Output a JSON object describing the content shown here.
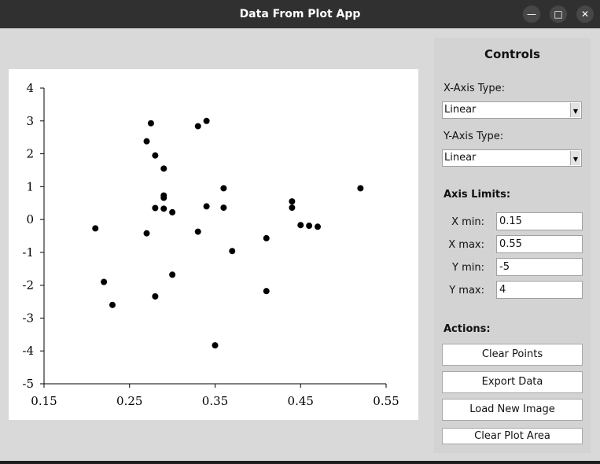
{
  "window": {
    "title": "Data From Plot App"
  },
  "controls": {
    "title": "Controls",
    "x_axis_type_label": "X-Axis Type:",
    "x_axis_type_value": "Linear",
    "y_axis_type_label": "Y-Axis Type:",
    "y_axis_type_value": "Linear",
    "axis_limits_label": "Axis Limits:",
    "xmin_label": "X min:",
    "xmin_value": "0.15",
    "xmax_label": "X max:",
    "xmax_value": "0.55",
    "ymin_label": "Y min:",
    "ymin_value": "-5",
    "ymax_label": "Y max:",
    "ymax_value": "4",
    "actions_label": "Actions:",
    "clear_points": "Clear Points",
    "export_data": "Export Data",
    "load_new_image": "Load New Image",
    "clear_plot_area": "Clear Plot Area"
  },
  "chart_data": {
    "type": "scatter",
    "title": "",
    "xlabel": "",
    "ylabel": "",
    "xlim": [
      0.15,
      0.55
    ],
    "ylim": [
      -5,
      4
    ],
    "xticks": [
      0.15,
      0.25,
      0.35,
      0.45,
      0.55
    ],
    "xtick_labels": [
      "0.15",
      "0.25",
      "0.35",
      "0.45",
      "0.55"
    ],
    "yticks": [
      4,
      3,
      2,
      1,
      0,
      -1,
      -2,
      -3,
      -4,
      -5
    ],
    "ytick_labels": [
      "4",
      "3",
      "2",
      "1",
      "0",
      "-1",
      "-2",
      "-3",
      "-4",
      "-5"
    ],
    "grid": false,
    "points": [
      [
        0.21,
        -0.27
      ],
      [
        0.22,
        -1.9
      ],
      [
        0.23,
        -2.6
      ],
      [
        0.27,
        2.38
      ],
      [
        0.275,
        2.93
      ],
      [
        0.27,
        -0.42
      ],
      [
        0.28,
        1.95
      ],
      [
        0.28,
        0.35
      ],
      [
        0.28,
        -2.34
      ],
      [
        0.29,
        1.55
      ],
      [
        0.29,
        0.73
      ],
      [
        0.29,
        0.66
      ],
      [
        0.29,
        0.33
      ],
      [
        0.3,
        0.22
      ],
      [
        0.3,
        -1.68
      ],
      [
        0.33,
        2.84
      ],
      [
        0.34,
        3.0
      ],
      [
        0.33,
        -0.37
      ],
      [
        0.34,
        0.4
      ],
      [
        0.35,
        -3.83
      ],
      [
        0.36,
        0.95
      ],
      [
        0.36,
        0.36
      ],
      [
        0.37,
        -0.96
      ],
      [
        0.41,
        -0.57
      ],
      [
        0.41,
        -2.18
      ],
      [
        0.44,
        0.55
      ],
      [
        0.44,
        0.36
      ],
      [
        0.45,
        -0.17
      ],
      [
        0.46,
        -0.19
      ],
      [
        0.47,
        -0.22
      ],
      [
        0.52,
        0.95
      ]
    ]
  }
}
